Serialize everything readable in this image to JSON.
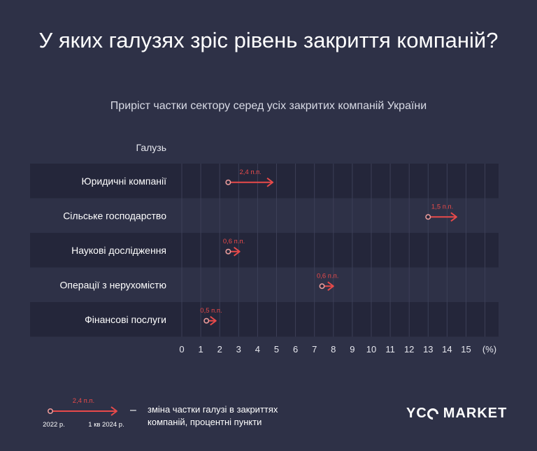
{
  "title": "У яких галузях зріс рівень закриття компаній?",
  "subtitle": "Приріст частки сектору серед усіх закритих компаній України",
  "colors": {
    "background": "#2e3147",
    "band": "#24263a",
    "arrow": "#e84a4a",
    "grid": "#3c3f57",
    "text": "#ffffff"
  },
  "chart_data": {
    "type": "arrow-range",
    "category_header": "Галузь",
    "x_unit_label": "(%)",
    "xlim": [
      0,
      16
    ],
    "x_ticks": [
      0,
      1,
      2,
      3,
      4,
      5,
      6,
      7,
      8,
      9,
      10,
      11,
      12,
      13,
      14,
      15
    ],
    "x_tick_labels": [
      "0",
      "1",
      "2",
      "3",
      "4",
      "5",
      "6",
      "7",
      "8",
      "9",
      "10",
      "11",
      "12",
      "13",
      "14",
      "15"
    ],
    "start_period": "2022 р.",
    "end_period": "1 кв 2024 р.",
    "rows": [
      {
        "category": "Юридичні компанії",
        "start": 2.45,
        "end": 4.8,
        "label": "2,4 п.п."
      },
      {
        "category": "Сільське господарство",
        "start": 13.0,
        "end": 14.5,
        "label": "1,5 п.п."
      },
      {
        "category": "Наукові дослідження",
        "start": 2.45,
        "end": 3.05,
        "label": "0,6 п.п."
      },
      {
        "category": "Операції з нерухомістю",
        "start": 7.4,
        "end": 8.0,
        "label": "0,6 п.п."
      },
      {
        "category": "Фінансові послуги",
        "start": 1.3,
        "end": 1.8,
        "label": "0,5 п.п."
      }
    ],
    "legend": {
      "change_label": "2,4 п.п.",
      "start_label": "2022 р.",
      "end_label": "1 кв 2024 р.",
      "dash": "–",
      "description": "зміна частки галузі в закриттях компаній, процентні пункти"
    }
  },
  "brand": {
    "logo_text": "YC MARKET",
    "logo_left": "YC",
    "logo_right": "MARKET"
  }
}
